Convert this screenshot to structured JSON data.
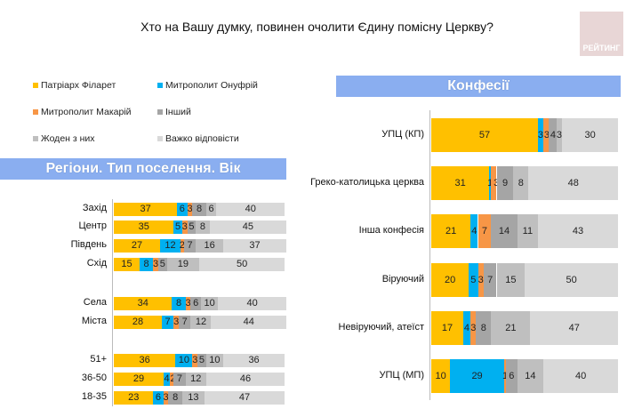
{
  "title": "Хто на Вашу думку, повинен очолити Єдину помісну Церкву?",
  "logo_text": "РЕЙТИНГ",
  "legend": [
    {
      "label": "Патріарх Філарет",
      "color": "#FFC000"
    },
    {
      "label": "Митрополит Онуфрій",
      "color": "#00B0F0"
    },
    {
      "label": "Митрополит Макарій",
      "color": "#F79646"
    },
    {
      "label": "Інший",
      "color": "#A5A5A5"
    },
    {
      "label": "Жоден з них",
      "color": "#BFBFBF"
    },
    {
      "label": "Важко відповісти",
      "color": "#D9D9D9"
    }
  ],
  "left_banner": "Регіони. Тип поселення. Вік",
  "right_banner": "Конфесії",
  "chart_data": [
    {
      "type": "bar",
      "stacked": true,
      "orientation": "horizontal",
      "title": "Регіони. Тип поселення. Вік",
      "series_names": [
        "Патріарх Філарет",
        "Митрополит Онуфрій",
        "Митрополит Макарій",
        "Інший",
        "Жоден з них",
        "Важко відповісти"
      ],
      "categories": [
        "Захід",
        "Центр",
        "Південь",
        "Схід",
        "Села",
        "Міста",
        "51+",
        "36-50",
        "18-35"
      ],
      "values": [
        [
          37,
          6,
          3,
          8,
          6,
          40
        ],
        [
          35,
          5,
          3,
          5,
          8,
          45
        ],
        [
          27,
          12,
          2,
          7,
          16,
          37
        ],
        [
          15,
          8,
          3,
          5,
          19,
          50
        ],
        [
          34,
          8,
          3,
          6,
          10,
          40
        ],
        [
          28,
          7,
          3,
          7,
          12,
          44
        ],
        [
          36,
          10,
          3,
          5,
          10,
          36
        ],
        [
          29,
          4,
          2,
          7,
          12,
          46
        ],
        [
          23,
          6,
          3,
          8,
          13,
          47
        ]
      ]
    },
    {
      "type": "bar",
      "stacked": true,
      "orientation": "horizontal",
      "title": "Конфесії",
      "series_names": [
        "Патріарх Філарет",
        "Митрополит Онуфрій",
        "Митрополит Макарій",
        "Інший",
        "Жоден з них",
        "Важко відповісти"
      ],
      "categories": [
        "УПЦ (КП)",
        "Греко-католицька церква",
        "Інша конфесія",
        "Віруючий",
        "Невіруючий, атеїст",
        "УПЦ (МП)"
      ],
      "values": [
        [
          57,
          3,
          3,
          4,
          3,
          30
        ],
        [
          31,
          1,
          3,
          9,
          8,
          48
        ],
        [
          21,
          4,
          7,
          14,
          11,
          43
        ],
        [
          20,
          5,
          3,
          7,
          15,
          50
        ],
        [
          17,
          4,
          3,
          8,
          21,
          47
        ],
        [
          10,
          29,
          1,
          6,
          14,
          40
        ]
      ]
    }
  ]
}
